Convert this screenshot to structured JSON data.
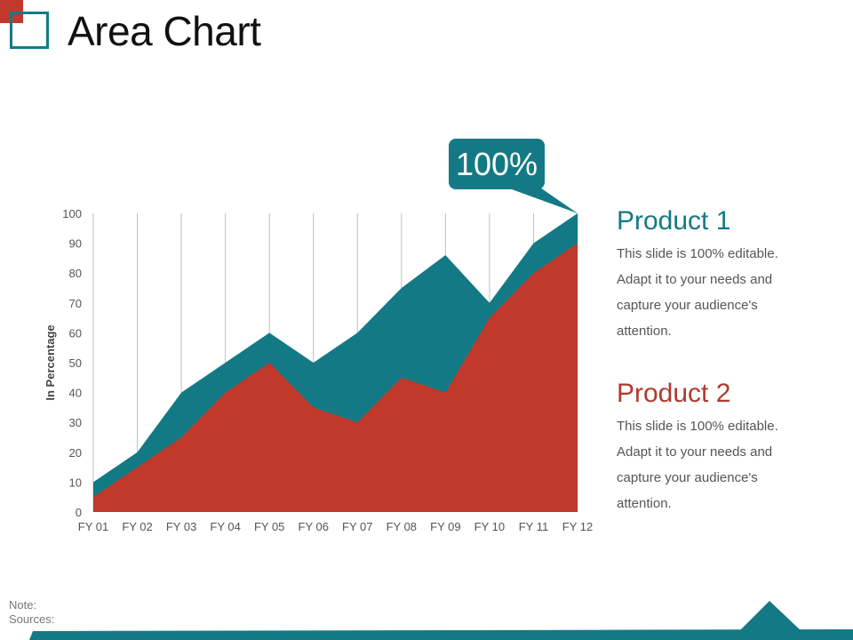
{
  "page": {
    "title": "Area Chart"
  },
  "callout": {
    "label": "100%"
  },
  "legend": [
    {
      "heading": "Product 1",
      "color": "#137a85",
      "lines": [
        "This slide is 100% editable.",
        "Adapt it to your needs and",
        "capture your audience's",
        "attention."
      ]
    },
    {
      "heading": "Product 2",
      "color": "#c0392b",
      "lines": [
        "This slide is 100% editable.",
        "Adapt it to your needs and",
        "capture your audience's",
        "attention."
      ]
    }
  ],
  "footer": {
    "note_label": "Note:",
    "sources_label": "Sources:"
  },
  "colors": {
    "teal": "#137a85",
    "red": "#c0392b",
    "grid": "#bfbfbf"
  },
  "chart_data": {
    "type": "area",
    "title": "Area Chart",
    "xlabel": "",
    "ylabel": "In Percentage",
    "categories": [
      "FY 01",
      "FY 02",
      "FY 03",
      "FY 04",
      "FY 05",
      "FY 06",
      "FY 07",
      "FY 08",
      "FY 09",
      "FY 10",
      "FY 11",
      "FY 12"
    ],
    "series": [
      {
        "name": "Product 1",
        "color": "#137a85",
        "values": [
          10,
          20,
          40,
          50,
          60,
          50,
          60,
          75,
          86,
          70,
          90,
          100
        ]
      },
      {
        "name": "Product 2",
        "color": "#c0392b",
        "values": [
          5,
          15,
          25,
          40,
          50,
          35,
          30,
          45,
          40,
          65,
          80,
          90
        ]
      }
    ],
    "ylim": [
      0,
      100
    ],
    "yticks": [
      0,
      10,
      20,
      30,
      40,
      50,
      60,
      70,
      80,
      90,
      100
    ],
    "grid": "vertical lines at each category",
    "legend_position": "right",
    "annotations": [
      {
        "text": "100%",
        "at": "FY 12"
      }
    ]
  }
}
